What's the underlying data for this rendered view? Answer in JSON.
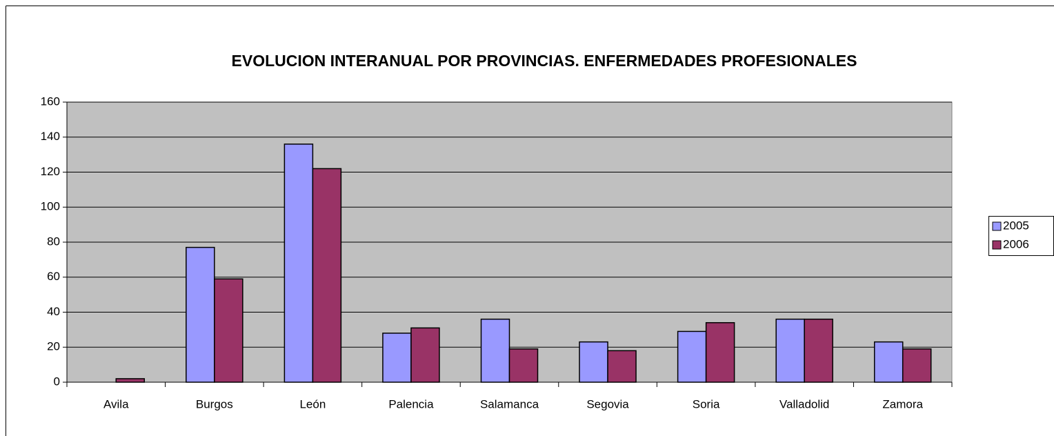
{
  "chart_data": {
    "type": "bar",
    "title": "EVOLUCION INTERANUAL POR PROVINCIAS. ENFERMEDADES PROFESIONALES",
    "categories": [
      "Avila",
      "Burgos",
      "León",
      "Palencia",
      "Salamanca",
      "Segovia",
      "Soria",
      "Valladolid",
      "Zamora"
    ],
    "series": [
      {
        "name": "2005",
        "color": "#9999ff",
        "values": [
          0,
          77,
          136,
          28,
          36,
          23,
          29,
          36,
          23
        ]
      },
      {
        "name": "2006",
        "color": "#993366",
        "values": [
          2,
          59,
          122,
          31,
          19,
          18,
          34,
          36,
          19
        ]
      }
    ],
    "ylim": [
      0,
      160
    ],
    "yticks": [
      0,
      20,
      40,
      60,
      80,
      100,
      120,
      140,
      160
    ],
    "grid": true,
    "legend": "right",
    "plot_background": "#c0c0c0"
  }
}
